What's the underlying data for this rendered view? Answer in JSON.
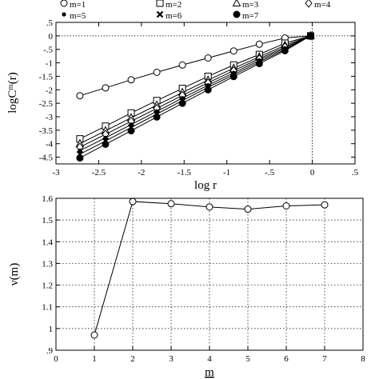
{
  "chart_data": [
    {
      "type": "line",
      "title": "",
      "xlabel": "log r",
      "ylabel": "logCᵐ(r)",
      "xlim": [
        -3,
        0.5
      ],
      "ylim": [
        -4.75,
        0.5
      ],
      "xticks": [
        -3,
        -2.5,
        -2,
        -1.5,
        -1,
        -0.5,
        0,
        0.5
      ],
      "xtick_labels": [
        "-3",
        "-2.5",
        "-2",
        "-1.5",
        "-1",
        "-.5",
        "0",
        ".5"
      ],
      "yticks": [
        0.5,
        0,
        -0.5,
        -1,
        -1.5,
        -2,
        -2.5,
        -3,
        -3.5,
        -4,
        -4.5
      ],
      "ytick_labels": [
        ".5",
        "0",
        "-.5",
        "-1",
        "-1.5",
        "-2",
        "-2.5",
        "-3",
        "-3.5",
        "-4",
        "-4.5"
      ],
      "grid": false,
      "reference_lines": {
        "y": 0,
        "x": 0,
        "style": "dotted"
      },
      "legend_position": "top",
      "x": [
        -2.72,
        -2.42,
        -2.12,
        -1.82,
        -1.52,
        -1.22,
        -0.92,
        -0.62,
        -0.32,
        -0.02
      ],
      "series": [
        {
          "name": "m=1",
          "marker": "circle-open",
          "values": [
            -2.22,
            -1.93,
            -1.63,
            -1.35,
            -1.08,
            -0.82,
            -0.56,
            -0.31,
            -0.08,
            0
          ]
        },
        {
          "name": "m=2",
          "marker": "square-open",
          "values": [
            -3.82,
            -3.35,
            -2.86,
            -2.4,
            -1.95,
            -1.5,
            -1.08,
            -0.69,
            -0.27,
            0
          ]
        },
        {
          "name": "m=3",
          "marker": "triangle-open",
          "values": [
            -4.0,
            -3.52,
            -3.04,
            -2.57,
            -2.1,
            -1.64,
            -1.2,
            -0.78,
            -0.35,
            0
          ]
        },
        {
          "name": "m=4",
          "marker": "diamond-open",
          "values": [
            -4.13,
            -3.65,
            -3.17,
            -2.69,
            -2.21,
            -1.74,
            -1.29,
            -0.85,
            -0.41,
            0
          ]
        },
        {
          "name": "m=5",
          "marker": "dot-small",
          "values": [
            -4.26,
            -3.78,
            -3.29,
            -2.8,
            -2.31,
            -1.83,
            -1.37,
            -0.91,
            -0.46,
            0
          ]
        },
        {
          "name": "m=6",
          "marker": "x-bold",
          "values": [
            -4.39,
            -3.9,
            -3.4,
            -2.9,
            -2.4,
            -1.91,
            -1.44,
            -0.97,
            -0.51,
            0
          ]
        },
        {
          "name": "m=7",
          "marker": "circle-filled",
          "values": [
            -4.53,
            -4.02,
            -3.52,
            -3.01,
            -2.5,
            -2.0,
            -1.51,
            -1.03,
            -0.55,
            0
          ]
        }
      ]
    },
    {
      "type": "line",
      "title": "",
      "xlabel": "m",
      "ylabel": "ν(m)",
      "xlim": [
        0,
        8
      ],
      "ylim": [
        0.9,
        1.6
      ],
      "xticks": [
        0,
        1,
        2,
        3,
        4,
        5,
        6,
        7,
        8
      ],
      "xtick_labels": [
        "0",
        "1",
        "2",
        "3",
        "4",
        "5",
        "6",
        "7",
        "8"
      ],
      "yticks": [
        0.9,
        1,
        1.1,
        1.2,
        1.3,
        1.4,
        1.5,
        1.6
      ],
      "ytick_labels": [
        ".9",
        "1",
        "1.1",
        "1.2",
        "1.3",
        "1.4",
        "1.5",
        "1.6"
      ],
      "grid": true,
      "x": [
        1,
        2,
        3,
        4,
        5,
        6,
        7
      ],
      "series": [
        {
          "marker": "circle-open",
          "values": [
            0.97,
            1.585,
            1.575,
            1.56,
            1.55,
            1.565,
            1.57
          ]
        }
      ]
    }
  ]
}
